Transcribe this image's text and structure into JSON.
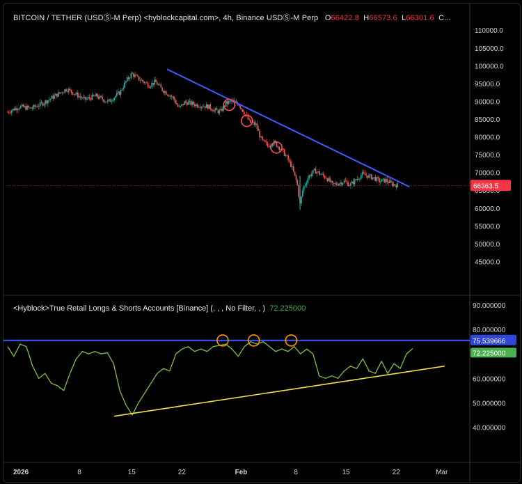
{
  "header": {
    "symbol": "BITCOIN / TETHER (USDⓈ-M Perp) <hyblockcapital.com>, 4h, Binance USDⓈ-M Perp",
    "o_label": "O",
    "o_value": "66422.8",
    "h_label": "H",
    "h_value": "66573.6",
    "l_label": "L",
    "l_value": "66301.6",
    "c_label": "C..."
  },
  "indicator": {
    "title": "<Hyblock>True Retail Longs & Shorts Accounts [Binance] (, , , No Filter, , )",
    "value": "72.225000"
  },
  "colors": {
    "background": "#000000",
    "candle_up": "#26a69a",
    "candle_down": "#ef5350",
    "price_trendline": "#3d5afe",
    "indicator_line": "#7cb342",
    "support_line": "#f2e34c",
    "level_line": "#3d5afe",
    "highlight_circle_price": "#ff4d5a",
    "highlight_circle_ind": "#ff9800",
    "last_price_tag": "#f23645"
  },
  "chart_data": [
    {
      "type": "candlestick",
      "title": "BITCOIN / TETHER (USDⓈ-M Perp), 4h",
      "ylim": [
        40000,
        112000
      ],
      "y_ticks": [
        "110000.0",
        "105000.0",
        "100000.0",
        "95000.0",
        "90000.0",
        "85000.0",
        "80000.0",
        "75000.0",
        "70000.0",
        "65000.0",
        "60000.0",
        "55000.0",
        "50000.0",
        "45000.0"
      ],
      "last_price": "66363.5",
      "price_path": [
        [
          0,
          87000
        ],
        [
          2,
          88500
        ],
        [
          4,
          88000
        ],
        [
          6,
          89500
        ],
        [
          8,
          91500
        ],
        [
          10,
          93500
        ],
        [
          11,
          92500
        ],
        [
          13,
          90500
        ],
        [
          15,
          91500
        ],
        [
          17,
          89800
        ],
        [
          19,
          92500
        ],
        [
          20,
          95500
        ],
        [
          21,
          97800
        ],
        [
          22,
          96500
        ],
        [
          23,
          95500
        ],
        [
          24,
          94500
        ],
        [
          25,
          95500
        ],
        [
          26,
          93500
        ],
        [
          28,
          91000
        ],
        [
          29,
          88000
        ],
        [
          30,
          89800
        ],
        [
          32,
          89000
        ],
        [
          34,
          88500
        ],
        [
          35,
          87500
        ],
        [
          36,
          87000
        ],
        [
          37,
          89500
        ],
        [
          38,
          90000
        ],
        [
          39,
          89500
        ],
        [
          40,
          87000
        ],
        [
          41,
          84000
        ],
        [
          42,
          83500
        ],
        [
          43,
          79000
        ],
        [
          44,
          77500
        ],
        [
          45,
          78500
        ],
        [
          46,
          77000
        ],
        [
          47,
          75000
        ],
        [
          48,
          72000
        ],
        [
          49,
          67000
        ],
        [
          49.5,
          61000
        ],
        [
          50,
          65500
        ],
        [
          51,
          69000
        ],
        [
          52,
          70500
        ],
        [
          53,
          69500
        ],
        [
          54,
          68500
        ],
        [
          55,
          66500
        ],
        [
          56,
          67000
        ],
        [
          57,
          67500
        ],
        [
          58,
          66500
        ],
        [
          59,
          68000
        ],
        [
          60,
          69500
        ],
        [
          61,
          69000
        ],
        [
          62,
          68500
        ],
        [
          63,
          67500
        ],
        [
          64,
          67800
        ],
        [
          65,
          66800
        ],
        [
          66,
          66400
        ]
      ],
      "trendline": {
        "start": [
          27,
          99000
        ],
        "end": [
          68,
          66000
        ]
      },
      "highlights": [
        [
          37.5,
          89000
        ],
        [
          40.5,
          84500
        ],
        [
          45.5,
          77000
        ]
      ]
    },
    {
      "type": "line",
      "title": "<Hyblock>True Retail Longs & Shorts Accounts [Binance]",
      "ylim": [
        33,
        92
      ],
      "y_ticks": [
        "90.000000",
        "80.000000",
        "70.000000",
        "60.000000",
        "50.000000",
        "40.000000"
      ],
      "x_ticks": [
        "2026",
        "8",
        "15",
        "22",
        "Feb",
        "8",
        "15",
        "22",
        "Mar"
      ],
      "level": {
        "value": 75.539666,
        "label": "75.539666"
      },
      "last_value": {
        "value": 72.225,
        "label": "72.225000"
      },
      "series": [
        [
          0,
          73
        ],
        [
          1,
          69
        ],
        [
          2,
          74
        ],
        [
          3,
          73
        ],
        [
          4,
          65
        ],
        [
          5,
          60
        ],
        [
          6,
          62
        ],
        [
          7,
          58
        ],
        [
          8,
          57
        ],
        [
          9,
          55
        ],
        [
          10,
          62
        ],
        [
          11,
          68
        ],
        [
          12,
          71
        ],
        [
          13,
          70
        ],
        [
          14,
          71
        ],
        [
          15,
          70
        ],
        [
          16,
          70.5
        ],
        [
          17,
          66
        ],
        [
          18,
          55
        ],
        [
          19,
          49
        ],
        [
          20,
          45
        ],
        [
          21,
          50
        ],
        [
          22,
          54
        ],
        [
          23,
          58
        ],
        [
          24,
          62
        ],
        [
          25,
          64
        ],
        [
          26,
          63
        ],
        [
          27,
          70
        ],
        [
          28,
          72
        ],
        [
          29,
          73
        ],
        [
          30,
          71
        ],
        [
          31,
          72
        ],
        [
          32,
          71
        ],
        [
          33,
          73
        ],
        [
          34,
          73.5
        ],
        [
          35,
          74
        ],
        [
          36,
          72
        ],
        [
          37,
          69
        ],
        [
          38,
          73
        ],
        [
          39,
          75
        ],
        [
          40,
          74
        ],
        [
          41,
          75
        ],
        [
          42,
          73
        ],
        [
          43,
          71
        ],
        [
          44,
          72
        ],
        [
          45,
          71
        ],
        [
          46,
          73
        ],
        [
          47,
          70
        ],
        [
          48,
          72
        ],
        [
          49,
          70
        ],
        [
          50,
          61
        ],
        [
          51,
          60
        ],
        [
          52,
          61
        ],
        [
          53,
          60
        ],
        [
          54,
          63
        ],
        [
          55,
          65
        ],
        [
          56,
          64
        ],
        [
          57,
          68
        ],
        [
          58,
          63
        ],
        [
          59,
          62
        ],
        [
          60,
          67
        ],
        [
          61,
          62
        ],
        [
          62,
          66
        ],
        [
          63,
          64
        ],
        [
          64,
          70
        ],
        [
          65,
          72.2
        ]
      ],
      "support_line": {
        "start": [
          18,
          44.5
        ],
        "end": [
          74,
          65
        ]
      },
      "highlights": [
        [
          34.5,
          75.5
        ],
        [
          39.5,
          75.5
        ],
        [
          45.5,
          75.5
        ]
      ]
    }
  ]
}
